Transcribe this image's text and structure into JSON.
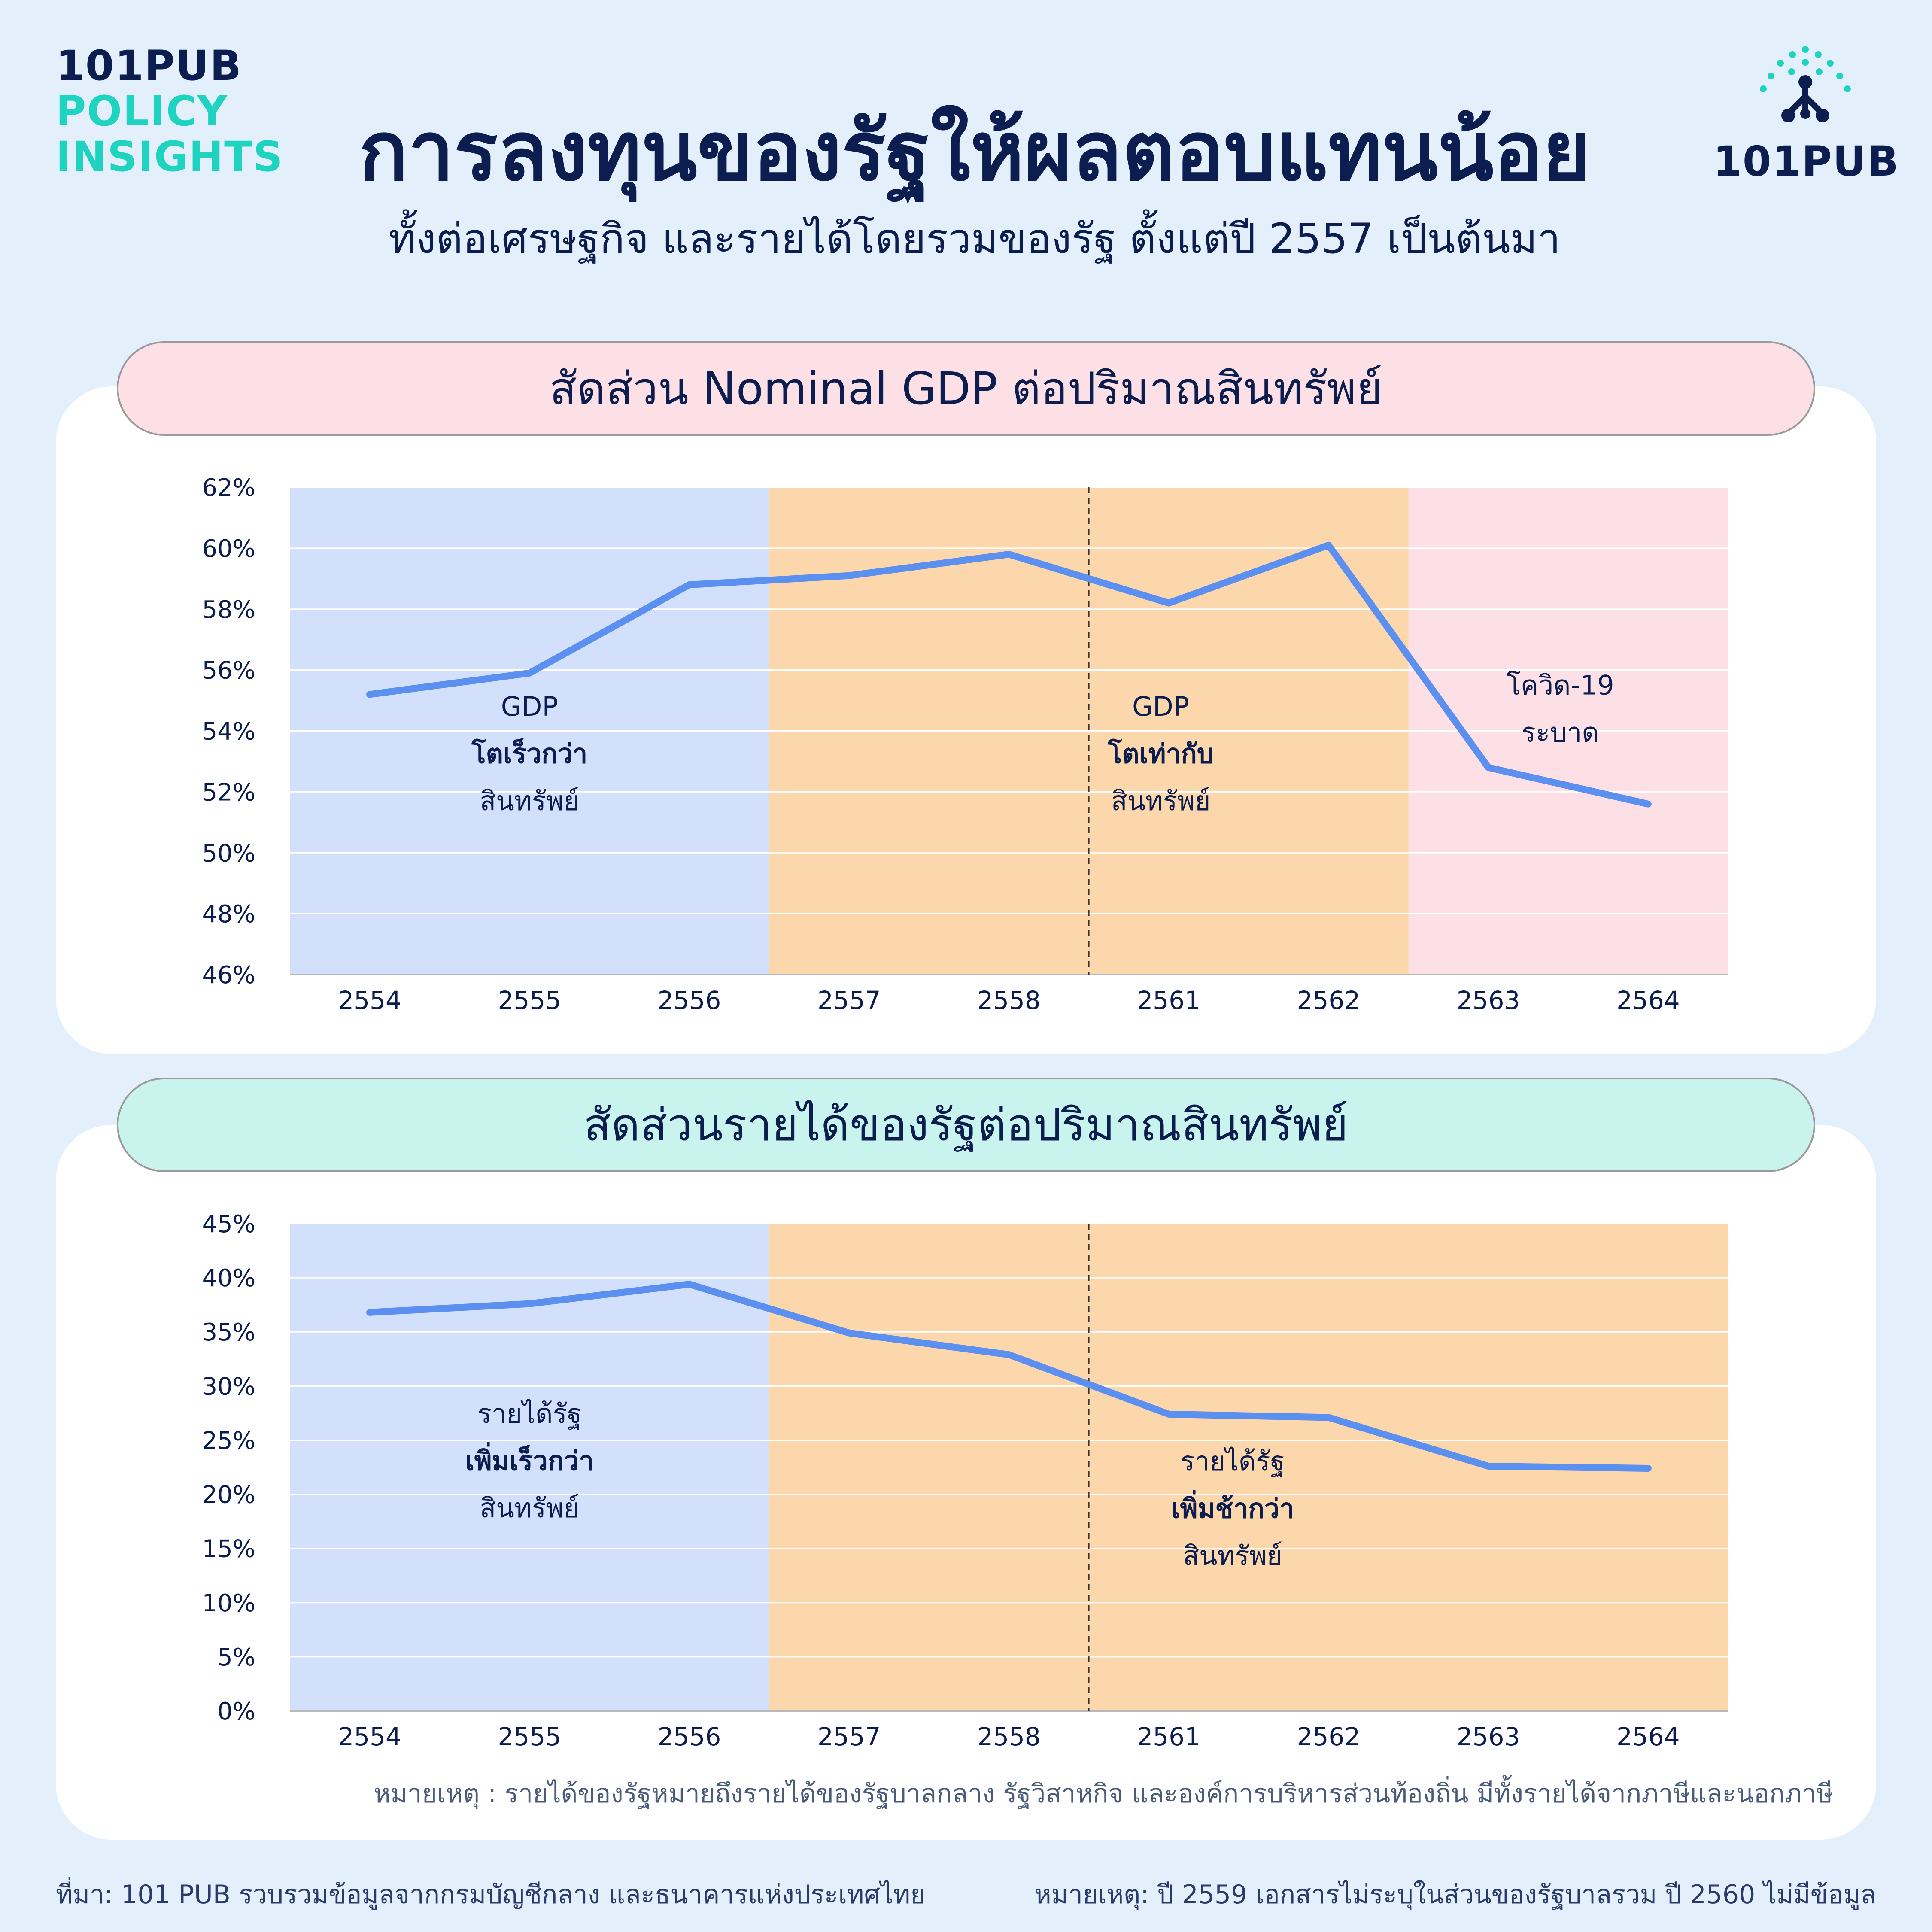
{
  "brand": {
    "left_line1": "101PUB",
    "left_line2": "POLICY",
    "left_line3": "INSIGHTS",
    "right_wordmark": "101PUB"
  },
  "header": {
    "title": "การลงทุนของรัฐให้ผลตอบแทนน้อย",
    "subtitle": "ทั้งต่อเศรษฐกิจ และรายได้โดยรวมของรัฐ ตั้งแต่ปี 2557 เป็นต้นมา"
  },
  "colors": {
    "line": "#5b8ff0",
    "zone_blue": "#d3e0fb",
    "zone_orange": "#fdd7ac",
    "zone_pink": "#fde0e6",
    "navy": "#0c1d4f",
    "teal": "#1ed3c0"
  },
  "chart_data": [
    {
      "type": "line",
      "title": "สัดส่วน Nominal GDP ต่อปริมาณสินทรัพย์",
      "categories": [
        "2554",
        "2555",
        "2556",
        "2557",
        "2558",
        "2561",
        "2562",
        "2563",
        "2564"
      ],
      "series": [
        {
          "values": [
            55.2,
            55.9,
            58.8,
            59.1,
            59.8,
            58.2,
            60.1,
            52.8,
            51.6
          ]
        }
      ],
      "ylim": [
        46,
        62
      ],
      "yticks": [
        46,
        48,
        50,
        52,
        54,
        56,
        58,
        60,
        62
      ],
      "ytick_labels": [
        "46%",
        "48%",
        "50%",
        "52%",
        "54%",
        "56%",
        "58%",
        "60%",
        "62%"
      ],
      "grid": true,
      "zones": [
        {
          "from": -0.5,
          "to": 2.5,
          "color": "zone_blue"
        },
        {
          "from": 2.5,
          "to": 6.5,
          "color": "zone_orange"
        },
        {
          "from": 6.5,
          "to": 8.5,
          "color": "zone_pink"
        }
      ],
      "divider_between": [
        4,
        5
      ],
      "annotations": [
        {
          "x": 1,
          "y": 54.5,
          "lines": [
            "GDP",
            "โตเร็วกว่า",
            "สินทรัพย์"
          ],
          "bold": [
            1
          ]
        },
        {
          "x": 4.95,
          "y": 54.5,
          "lines": [
            "GDP",
            "โตเท่ากับ",
            "สินทรัพย์"
          ],
          "bold": [
            1
          ]
        },
        {
          "x": 7.45,
          "y": 55.2,
          "lines": [
            "โควิด-19",
            "ระบาด"
          ],
          "bold": []
        }
      ]
    },
    {
      "type": "line",
      "title": "สัดส่วนรายได้ของรัฐต่อปริมาณสินทรัพย์",
      "categories": [
        "2554",
        "2555",
        "2556",
        "2557",
        "2558",
        "2561",
        "2562",
        "2563",
        "2564"
      ],
      "series": [
        {
          "values": [
            36.8,
            37.6,
            39.4,
            34.9,
            32.9,
            27.4,
            27.1,
            22.6,
            22.4
          ]
        }
      ],
      "ylim": [
        0,
        45
      ],
      "yticks": [
        0,
        5,
        10,
        15,
        20,
        25,
        30,
        35,
        40,
        45
      ],
      "ytick_labels": [
        "0%",
        "5%",
        "10%",
        "15%",
        "20%",
        "25%",
        "30%",
        "35%",
        "40%",
        "45%"
      ],
      "grid": true,
      "zones": [
        {
          "from": -0.5,
          "to": 2.5,
          "color": "zone_blue"
        },
        {
          "from": 2.5,
          "to": 8.5,
          "color": "zone_orange"
        }
      ],
      "divider_between": [
        4,
        5
      ],
      "annotations": [
        {
          "x": 1,
          "y": 26.6,
          "lines": [
            "รายได้รัฐ",
            "เพิ่มเร็วกว่า",
            "สินทรัพย์"
          ],
          "bold": [
            1
          ]
        },
        {
          "x": 5.4,
          "y": 22.2,
          "lines": [
            "รายได้รัฐ",
            "เพิ่มช้ากว่า",
            "สินทรัพย์"
          ],
          "bold": [
            1
          ]
        }
      ]
    }
  ],
  "note": "หมายเหตุ : รายได้ของรัฐหมายถึงรายได้ของรัฐบาลกลาง รัฐวิสาหกิจ และองค์การบริหารส่วนท้องถิ่น มีทั้งรายได้จากภาษีและนอกภาษี",
  "footer": {
    "source": "ที่มา: 101 PUB รวบรวมข้อมูลจากกรมบัญชีกลาง และธนาคารแห่งประเทศไทย",
    "note": "หมายเหตุ: ปี 2559 เอกสารไม่ระบุในส่วนของรัฐบาลรวม ปี 2560 ไม่มีข้อมูล"
  }
}
